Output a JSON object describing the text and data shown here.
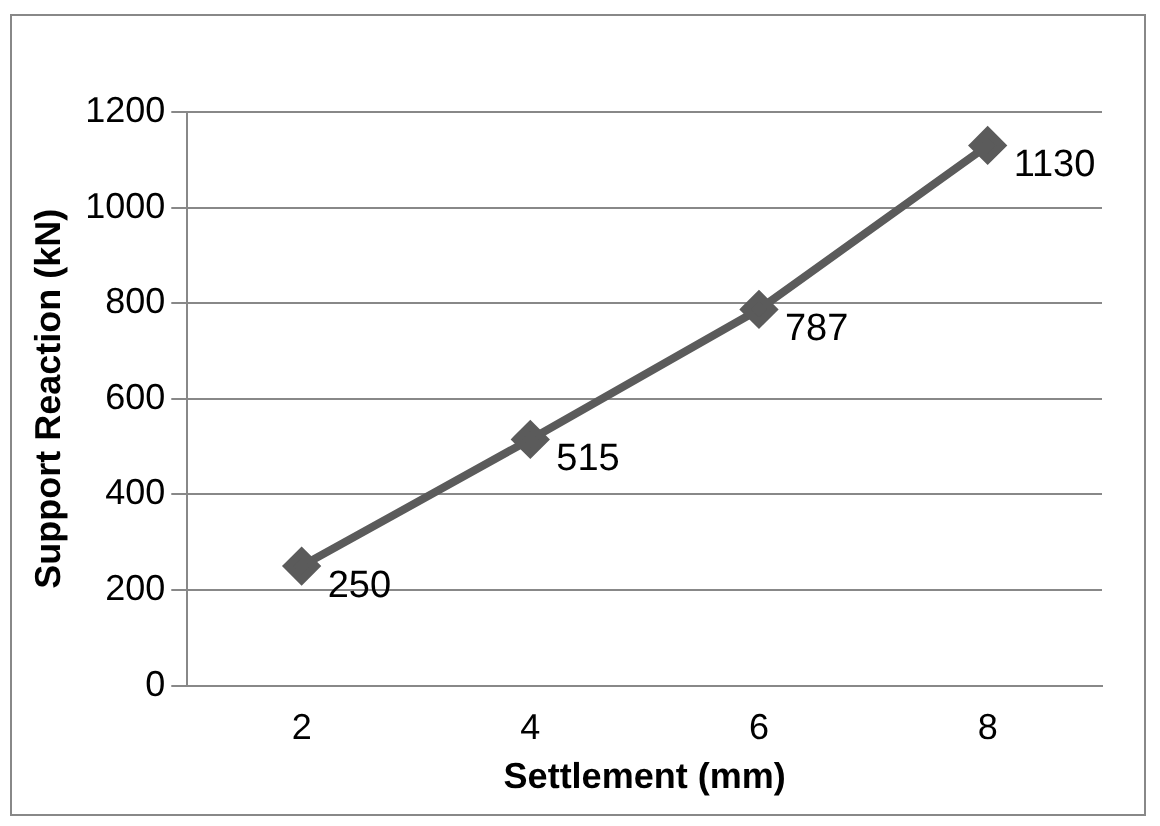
{
  "chart_data": {
    "type": "line",
    "xlabel": "Settlement (mm)",
    "ylabel": "Support Reaction (kN)",
    "categories": [
      "2",
      "4",
      "6",
      "8"
    ],
    "series": [
      {
        "color": "#5b5b5b",
        "values": [
          250,
          515,
          787,
          1130
        ]
      }
    ],
    "ylim": [
      0,
      1200
    ],
    "yticks": [
      0,
      200,
      400,
      600,
      800,
      1000,
      1200
    ],
    "grid": "y",
    "legend": false,
    "marker": "diamond",
    "data_labels": true
  }
}
